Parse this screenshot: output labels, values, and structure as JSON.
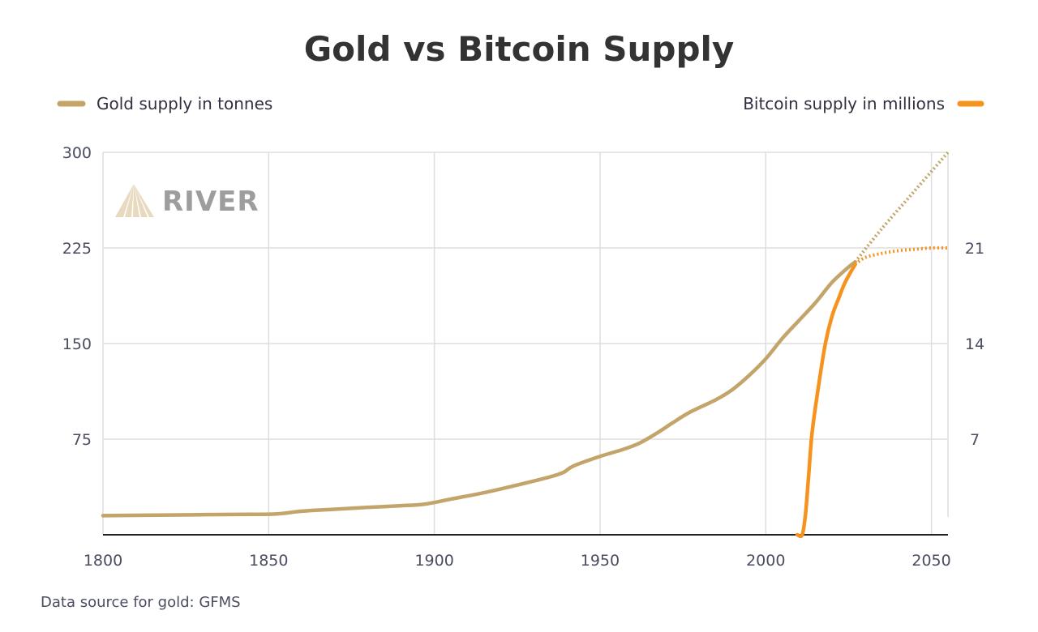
{
  "chart_data": {
    "type": "line",
    "title": "Gold vs Bitcoin Supply",
    "source": "Data source for gold: GFMS",
    "watermark": "RIVER",
    "x_range": [
      1800,
      2055
    ],
    "x_ticks": [
      1800,
      1850,
      1900,
      1950,
      2000,
      2050
    ],
    "y_left": {
      "range": [
        0,
        300
      ],
      "ticks": [
        75,
        150,
        225,
        300
      ]
    },
    "y_right": {
      "range": [
        0,
        28
      ],
      "ticks": [
        7,
        14,
        21
      ]
    },
    "grid": true,
    "legend_placement": "top",
    "series": [
      {
        "name": "Gold supply in tonnes",
        "color": "#c3a46a",
        "axis": "left",
        "projected_from": 2027,
        "x": [
          1800,
          1820,
          1840,
          1852,
          1860,
          1870,
          1880,
          1890,
          1897,
          1905,
          1915,
          1925,
          1935,
          1939,
          1942,
          1950,
          1957,
          1962,
          1967,
          1972,
          1977,
          1985,
          1990,
          1995,
          2000,
          2005,
          2010,
          2015,
          2020,
          2025,
          2027,
          2035,
          2045,
          2055
        ],
        "values": [
          15,
          15.5,
          16,
          16.3,
          18.5,
          20,
          21.5,
          22.8,
          24,
          28,
          33,
          39,
          45.5,
          49,
          54,
          61.5,
          67,
          72,
          79.5,
          88,
          96,
          106,
          114,
          125,
          138,
          154,
          168,
          182,
          198,
          210,
          214,
          240,
          270,
          300
        ]
      },
      {
        "name": "Bitcoin supply in millions",
        "color": "#f6931f",
        "axis": "right",
        "projected_from": 2027,
        "x": [
          2009.5,
          2011,
          2012,
          2013,
          2014,
          2016,
          2018,
          2020,
          2022,
          2024,
          2027,
          2030,
          2035,
          2040,
          2045,
          2050,
          2055
        ],
        "values": [
          0,
          0,
          1.5,
          4.5,
          7.5,
          11,
          14,
          16,
          17.3,
          18.5,
          19.8,
          20.3,
          20.6,
          20.8,
          20.9,
          21,
          21
        ]
      }
    ]
  }
}
